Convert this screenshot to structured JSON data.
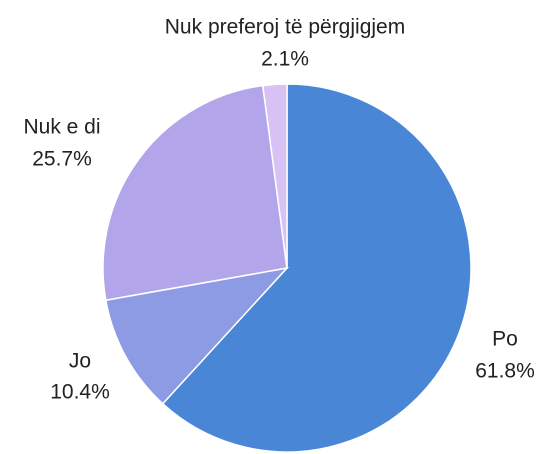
{
  "chart_data": {
    "type": "pie",
    "categories": [
      "Po",
      "Jo",
      "Nuk e di",
      "Nuk preferoj të përgjigjem"
    ],
    "values": [
      61.8,
      10.4,
      25.7,
      2.1
    ],
    "value_labels": [
      "61.8%",
      "10.4%",
      "25.7%",
      "2.1%"
    ],
    "colors": [
      "#4a86d6",
      "#8d9ae4",
      "#b3a5ea",
      "#d8c2f3"
    ]
  }
}
